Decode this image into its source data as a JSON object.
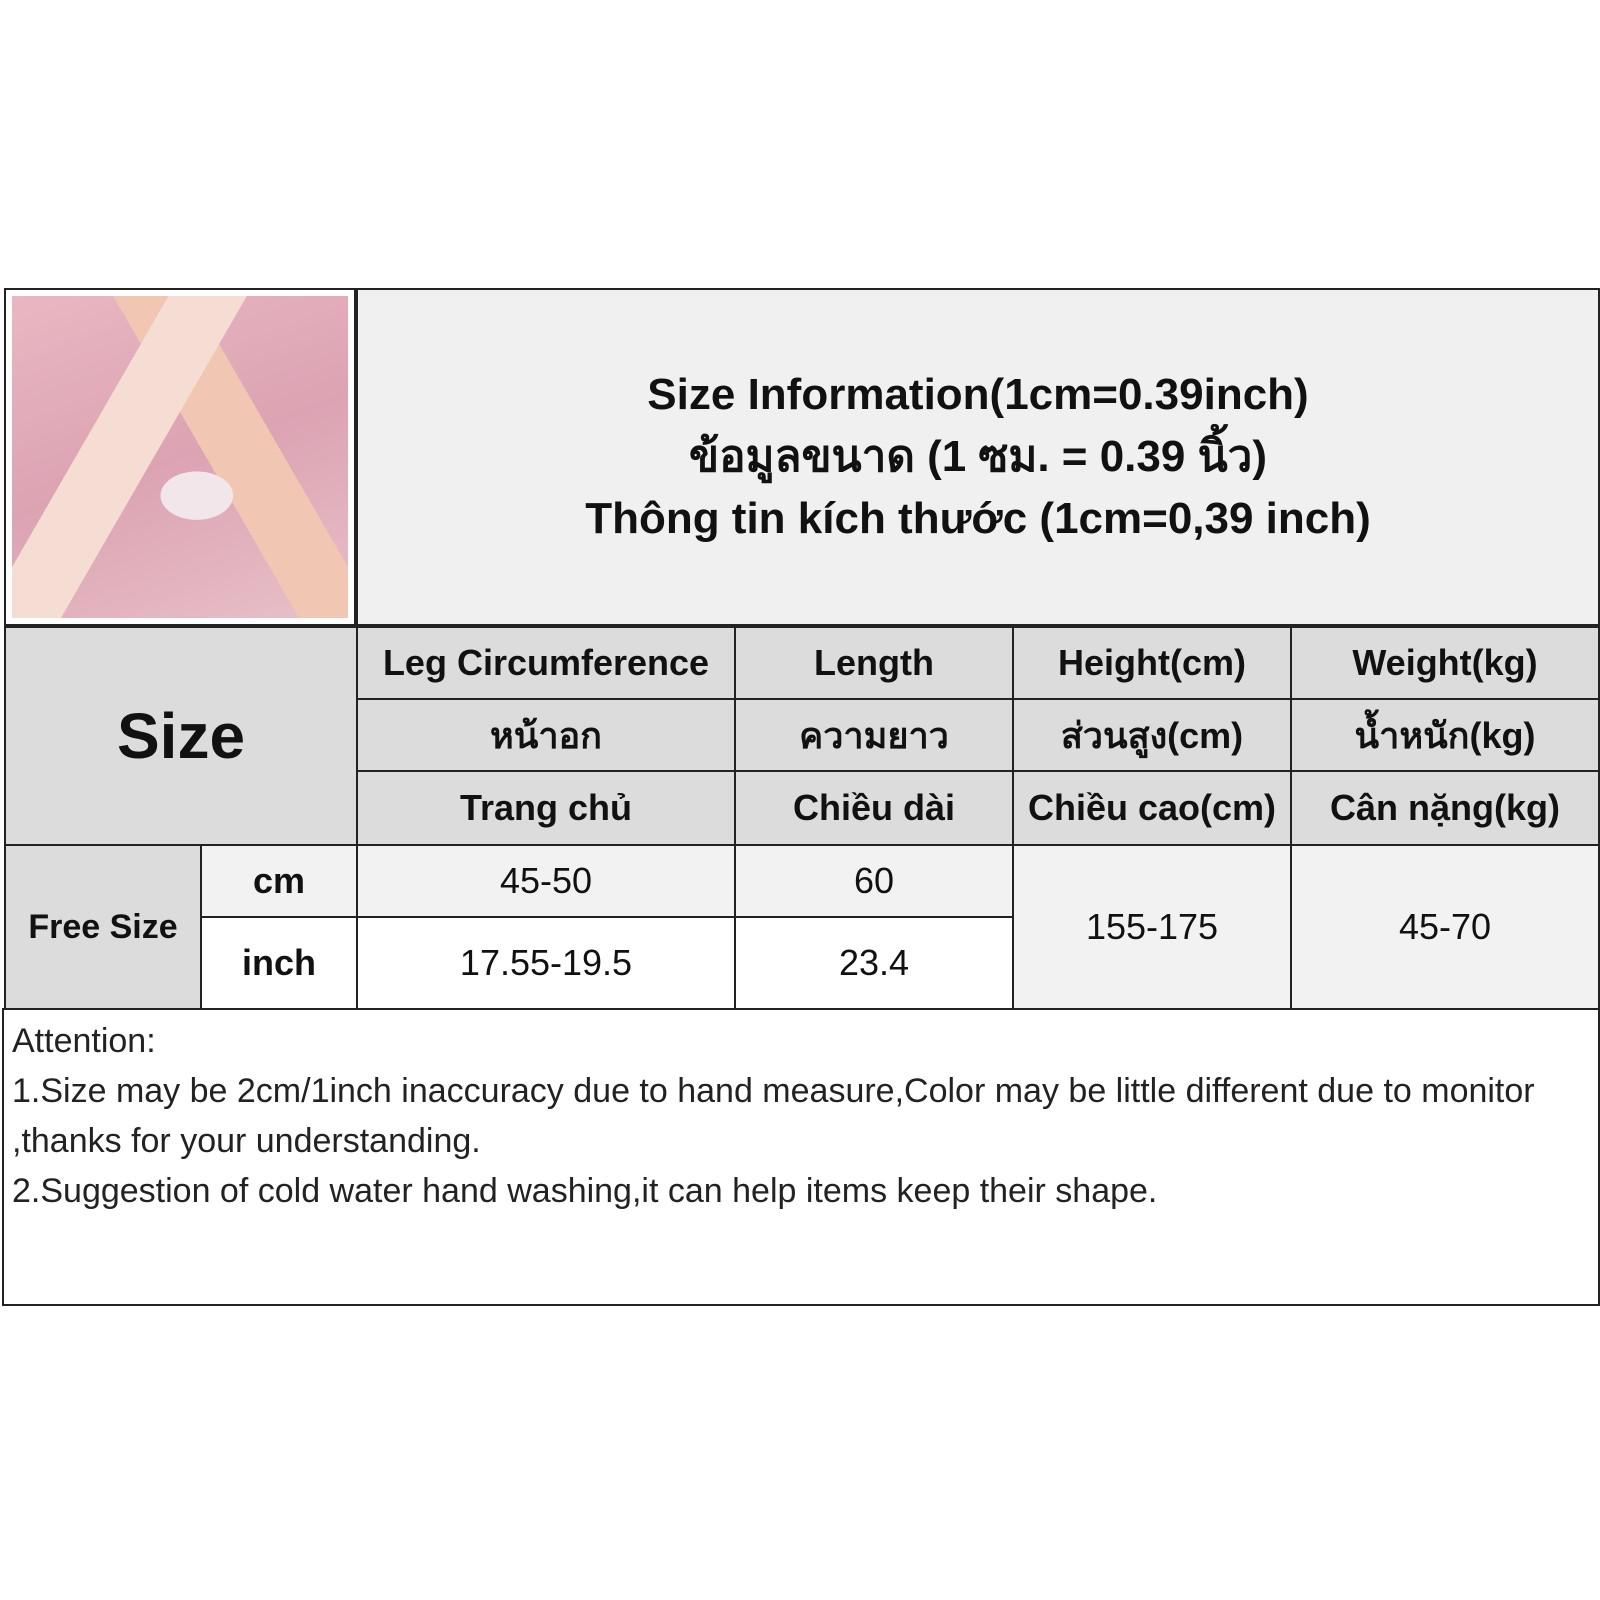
{
  "title": {
    "line1": "Size Information(1cm=0.39inch)",
    "line2": "ข้อมูลขนาด (1 ซม. = 0.39 นิ้ว)",
    "line3": "Thông tin kích thước (1cm=0,39 inch)"
  },
  "table": {
    "size_label": "Size",
    "columns": [
      {
        "en": "Leg Circumference",
        "th": "หน้าอก",
        "vi": "Trang chủ"
      },
      {
        "en": "Length",
        "th": "ความยาว",
        "vi": "Chiều dài"
      },
      {
        "en": "Height(cm)",
        "th": "ส่วนสูง(cm)",
        "vi": "Chiều cao(cm)"
      },
      {
        "en": "Weight(kg)",
        "th": "น้ำหนัก(kg)",
        "vi": "Cân nặng(kg)"
      }
    ],
    "row_label": "Free Size",
    "units": [
      "cm",
      "inch"
    ],
    "cm": [
      "45-50",
      "60"
    ],
    "inch": [
      "17.55-19.5",
      "23.4"
    ],
    "height": "155-175",
    "weight": "45-70"
  },
  "attention": {
    "heading": "Attention:",
    "note1": "1.Size may be 2cm/1inch inaccuracy due to hand measure,Color may be little different due to monitor ,thanks for your understanding.",
    "note2": "2.Suggestion of cold water hand washing,it can help items keep their shape."
  }
}
